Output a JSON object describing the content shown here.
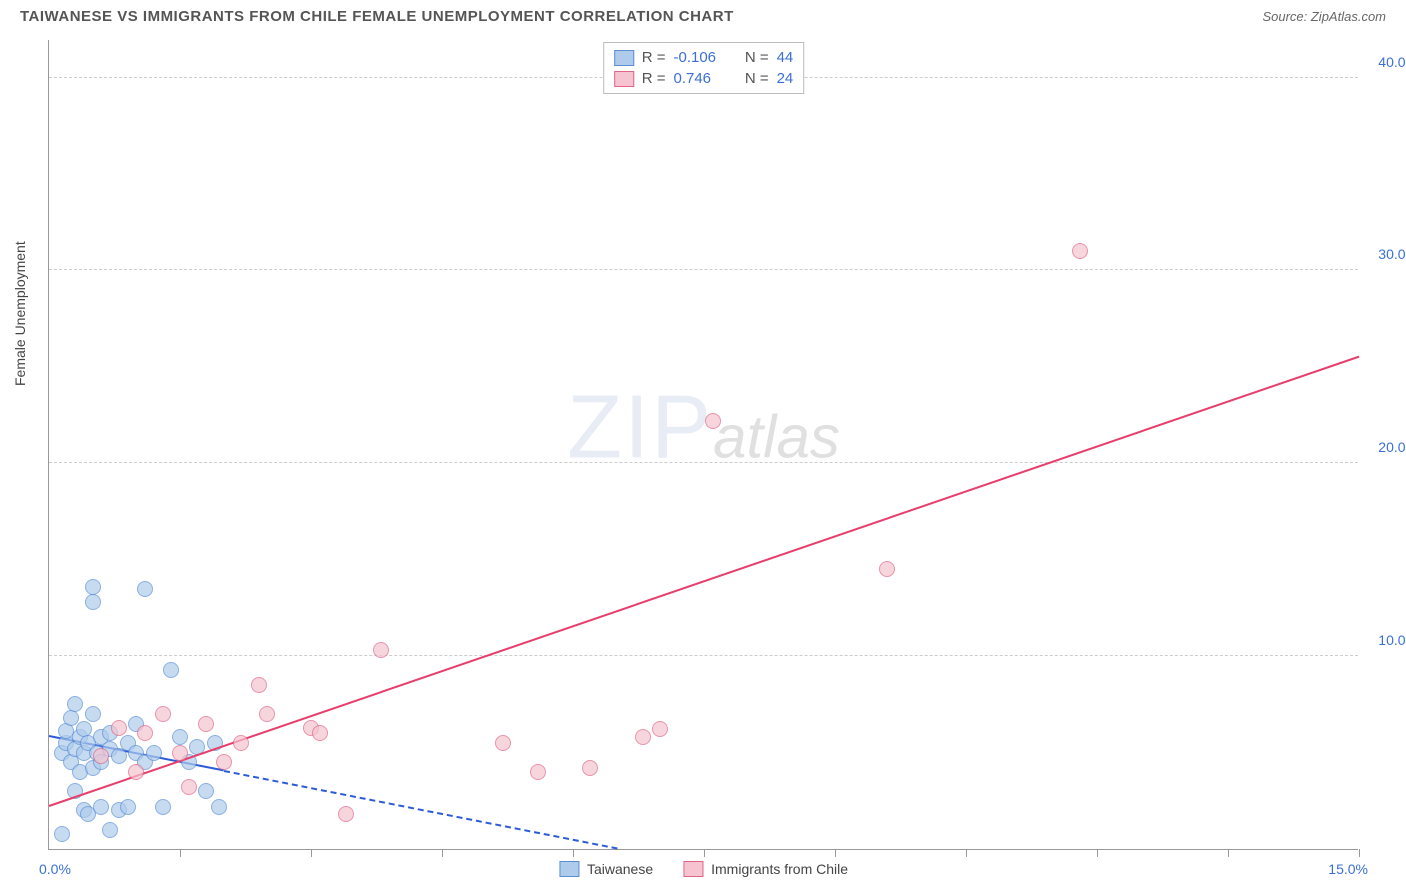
{
  "header": {
    "title": "TAIWANESE VS IMMIGRANTS FROM CHILE FEMALE UNEMPLOYMENT CORRELATION CHART",
    "source": "Source: ZipAtlas.com"
  },
  "chart": {
    "type": "scatter",
    "ylabel": "Female Unemployment",
    "xlim": [
      0,
      15
    ],
    "ylim": [
      0,
      42
    ],
    "x_axis_labels": {
      "min": "0.0%",
      "max": "15.0%"
    },
    "y_ticks": [
      {
        "v": 10,
        "label": "10.0%"
      },
      {
        "v": 20,
        "label": "20.0%"
      },
      {
        "v": 30,
        "label": "30.0%"
      },
      {
        "v": 40,
        "label": "40.0%"
      }
    ],
    "x_tick_positions": [
      1.5,
      3.0,
      4.5,
      6.0,
      7.5,
      9.0,
      10.5,
      12.0,
      13.5,
      15.0
    ],
    "background_color": "#ffffff",
    "grid_color": "#cccccc",
    "series": [
      {
        "name": "Taiwanese",
        "fill_color": "#aecbeb",
        "border_color": "#5a8fd6",
        "line_color": "#2d5bd7",
        "R": "-0.106",
        "N": "44",
        "trend": {
          "x1": 0,
          "y1": 5.8,
          "x2": 6.5,
          "y2": 0,
          "solid_until_x": 2.0
        },
        "points": [
          {
            "x": 0.15,
            "y": 5.0
          },
          {
            "x": 0.2,
            "y": 5.5
          },
          {
            "x": 0.2,
            "y": 6.1
          },
          {
            "x": 0.25,
            "y": 4.5
          },
          {
            "x": 0.25,
            "y": 6.8
          },
          {
            "x": 0.3,
            "y": 3.0
          },
          {
            "x": 0.3,
            "y": 5.2
          },
          {
            "x": 0.3,
            "y": 7.5
          },
          {
            "x": 0.35,
            "y": 4.0
          },
          {
            "x": 0.35,
            "y": 5.8
          },
          {
            "x": 0.4,
            "y": 2.0
          },
          {
            "x": 0.4,
            "y": 5.0
          },
          {
            "x": 0.4,
            "y": 6.2
          },
          {
            "x": 0.45,
            "y": 1.8
          },
          {
            "x": 0.45,
            "y": 5.5
          },
          {
            "x": 0.5,
            "y": 4.2
          },
          {
            "x": 0.5,
            "y": 7.0
          },
          {
            "x": 0.5,
            "y": 12.8
          },
          {
            "x": 0.5,
            "y": 13.6
          },
          {
            "x": 0.55,
            "y": 5.0
          },
          {
            "x": 0.6,
            "y": 2.2
          },
          {
            "x": 0.6,
            "y": 5.8
          },
          {
            "x": 0.6,
            "y": 4.5
          },
          {
            "x": 0.7,
            "y": 1.0
          },
          {
            "x": 0.7,
            "y": 5.2
          },
          {
            "x": 0.7,
            "y": 6.0
          },
          {
            "x": 0.8,
            "y": 2.0
          },
          {
            "x": 0.8,
            "y": 4.8
          },
          {
            "x": 0.9,
            "y": 2.2
          },
          {
            "x": 0.9,
            "y": 5.5
          },
          {
            "x": 1.0,
            "y": 5.0
          },
          {
            "x": 1.0,
            "y": 6.5
          },
          {
            "x": 1.1,
            "y": 4.5
          },
          {
            "x": 1.1,
            "y": 13.5
          },
          {
            "x": 1.2,
            "y": 5.0
          },
          {
            "x": 1.3,
            "y": 2.2
          },
          {
            "x": 1.4,
            "y": 9.3
          },
          {
            "x": 1.5,
            "y": 5.8
          },
          {
            "x": 1.6,
            "y": 4.5
          },
          {
            "x": 1.7,
            "y": 5.3
          },
          {
            "x": 1.8,
            "y": 3.0
          },
          {
            "x": 1.9,
            "y": 5.5
          },
          {
            "x": 1.95,
            "y": 2.2
          },
          {
            "x": 0.15,
            "y": 0.8
          }
        ]
      },
      {
        "name": "Immigrants from Chile",
        "fill_color": "#f5c4d0",
        "border_color": "#e06688",
        "line_color": "#e83e6b",
        "R": "0.746",
        "N": "24",
        "trend": {
          "x1": 0,
          "y1": 2.2,
          "x2": 15,
          "y2": 25.5,
          "solid_until_x": 15
        },
        "points": [
          {
            "x": 0.6,
            "y": 4.8
          },
          {
            "x": 0.8,
            "y": 6.3
          },
          {
            "x": 1.0,
            "y": 4.0
          },
          {
            "x": 1.1,
            "y": 6.0
          },
          {
            "x": 1.3,
            "y": 7.0
          },
          {
            "x": 1.5,
            "y": 5.0
          },
          {
            "x": 1.6,
            "y": 3.2
          },
          {
            "x": 1.8,
            "y": 6.5
          },
          {
            "x": 2.2,
            "y": 5.5
          },
          {
            "x": 2.4,
            "y": 8.5
          },
          {
            "x": 2.5,
            "y": 7.0
          },
          {
            "x": 3.0,
            "y": 6.3
          },
          {
            "x": 3.1,
            "y": 6.0
          },
          {
            "x": 3.4,
            "y": 1.8
          },
          {
            "x": 3.8,
            "y": 10.3
          },
          {
            "x": 5.2,
            "y": 5.5
          },
          {
            "x": 5.6,
            "y": 4.0
          },
          {
            "x": 6.2,
            "y": 4.2
          },
          {
            "x": 6.8,
            "y": 5.8
          },
          {
            "x": 7.0,
            "y": 6.2
          },
          {
            "x": 7.6,
            "y": 22.2
          },
          {
            "x": 9.6,
            "y": 14.5
          },
          {
            "x": 11.8,
            "y": 31.0
          },
          {
            "x": 2.0,
            "y": 4.5
          }
        ]
      }
    ],
    "legend_top": [
      {
        "swatch_fill": "#aecbeb",
        "swatch_border": "#5a8fd6",
        "R": "-0.106",
        "N": "44"
      },
      {
        "swatch_fill": "#f5c4d0",
        "swatch_border": "#e06688",
        "R": "0.746",
        "N": "24"
      }
    ],
    "legend_bottom": [
      {
        "swatch_fill": "#aecbeb",
        "swatch_border": "#5a8fd6",
        "label": "Taiwanese"
      },
      {
        "swatch_fill": "#f5c4d0",
        "swatch_border": "#e06688",
        "label": "Immigrants from Chile"
      }
    ],
    "watermark": {
      "zip": "ZIP",
      "atlas": "atlas"
    }
  }
}
